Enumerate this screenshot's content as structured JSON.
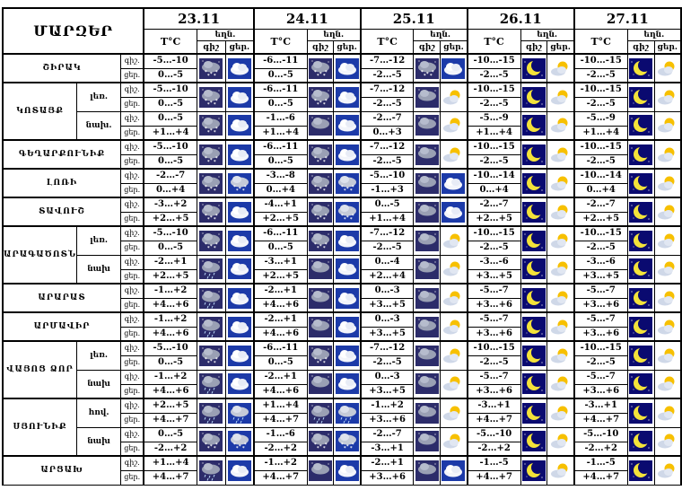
{
  "header": {
    "corner": "ՄԱՐԶԵՐ",
    "dates": [
      "23.11",
      "24.11",
      "25.11",
      "26.11",
      "27.11"
    ],
    "temp_label": "T°C",
    "cloud_label": "եղն.",
    "night_label": "գիշ",
    "day_label": "ցեր."
  },
  "row_labels": {
    "night": "գիշ.",
    "day": "ցեր."
  },
  "regions": [
    {
      "name": "ՇԻՐԱԿ",
      "subs": [
        {
          "sub": "",
          "night": [
            "-5…-10",
            "-6…-11",
            "-7…-12",
            "-10…-15",
            "-10…-15"
          ],
          "day": [
            "0…-5",
            "0…-5",
            "-2…-5",
            "-2…-5",
            "-2…-5"
          ],
          "icons": [
            [
              "cloud-snow-night",
              "cloud-day"
            ],
            [
              "cloud-snow-night",
              "cloud-day"
            ],
            [
              "cloud-snow-night",
              "cloud-day"
            ],
            [
              "moon-clear",
              "sun-cloud"
            ],
            [
              "moon-clear",
              "sun-cloud"
            ]
          ]
        }
      ]
    },
    {
      "name": "ԿՈՏԱՅՔ",
      "subs": [
        {
          "sub": "լեռ.",
          "night": [
            "-5…-10",
            "-6…-11",
            "-7…-12",
            "-10…-15",
            "-10…-15"
          ],
          "day": [
            "0…-5",
            "0…-5",
            "-2…-5",
            "-2…-5",
            "-2…-5"
          ],
          "icons": [
            [
              "cloud-snow-night",
              "cloud-day"
            ],
            [
              "cloud-snow-night",
              "cloud-day"
            ],
            [
              "cloud-night",
              "sun-cloud"
            ],
            [
              "moon-clear",
              "sun-cloud"
            ],
            [
              "moon-clear",
              "sun-cloud"
            ]
          ]
        },
        {
          "sub": "նախ.",
          "night": [
            "0…-5",
            "-1…-6",
            "-2…-7",
            "-5…-9",
            "-5…-9"
          ],
          "day": [
            "+1…+4",
            "+1…+4",
            "0…+3",
            "+1…+4",
            "+1…+4"
          ],
          "icons": [
            [
              "cloud-snow-night",
              "cloud-day"
            ],
            [
              "cloud-night",
              "cloud-day"
            ],
            [
              "cloud-night",
              "sun-cloud"
            ],
            [
              "moon-clear",
              "sun-cloud"
            ],
            [
              "moon-clear",
              "sun-cloud"
            ]
          ]
        }
      ]
    },
    {
      "name": "ԳԵՂԱՐՔՈՒՆԻՔ",
      "subs": [
        {
          "sub": "",
          "night": [
            "-5…-10",
            "-6…-11",
            "-7…-12",
            "-10…-15",
            "-10…-15"
          ],
          "day": [
            "0…-5",
            "0…-5",
            "-2…-5",
            "-2…-5",
            "-2…-5"
          ],
          "icons": [
            [
              "cloud-snow-night",
              "cloud-day"
            ],
            [
              "cloud-snow-night",
              "cloud-day"
            ],
            [
              "cloud-night",
              "sun-cloud"
            ],
            [
              "moon-clear",
              "sun-cloud"
            ],
            [
              "moon-clear",
              "sun-cloud"
            ]
          ]
        }
      ]
    },
    {
      "name": "ԼՈՌԻ",
      "subs": [
        {
          "sub": "",
          "night": [
            "-2…-7",
            "-3…-8",
            "-5…-10",
            "-10…-14",
            "-10…-14"
          ],
          "day": [
            "0…+4",
            "0…+4",
            "-1…+3",
            "0…+4",
            "0…+4"
          ],
          "icons": [
            [
              "cloud-snow-night",
              "cloud-snow-day"
            ],
            [
              "cloud-snow-night",
              "cloud-snow-day"
            ],
            [
              "cloud-night",
              "cloud-day"
            ],
            [
              "moon-clear",
              "sun-cloud"
            ],
            [
              "moon-clear",
              "sun-cloud"
            ]
          ]
        }
      ]
    },
    {
      "name": "ՏԱՎՈՒՇ",
      "subs": [
        {
          "sub": "",
          "night": [
            "-3…+2",
            "-4…+1",
            "0…-5",
            "-2…-7",
            "-2…-7"
          ],
          "day": [
            "+2…+5",
            "+2…+5",
            "+1…+4",
            "+2…+5",
            "+2…+5"
          ],
          "icons": [
            [
              "cloud-snow-night",
              "cloud-day"
            ],
            [
              "cloud-snow-night",
              "cloud-snow-day"
            ],
            [
              "cloud-night",
              "cloud-day"
            ],
            [
              "moon-clear",
              "sun-cloud"
            ],
            [
              "moon-clear",
              "sun-cloud"
            ]
          ]
        }
      ]
    },
    {
      "name": "ԱՐԱԳԱԾՈՏՆ",
      "subs": [
        {
          "sub": "լեռ.",
          "night": [
            "-5…-10",
            "-6…-11",
            "-7…-12",
            "-10…-15",
            "-10…-15"
          ],
          "day": [
            "0…-5",
            "0…-5",
            "-2…-5",
            "-2…-5",
            "-2…-5"
          ],
          "icons": [
            [
              "cloud-snow-night",
              "cloud-day"
            ],
            [
              "cloud-snow-night",
              "cloud-day"
            ],
            [
              "cloud-night",
              "sun-cloud"
            ],
            [
              "moon-clear",
              "sun-cloud"
            ],
            [
              "moon-clear",
              "sun-cloud"
            ]
          ]
        },
        {
          "sub": "նախ",
          "night": [
            "-2…+1",
            "-3…+1",
            "0…-4",
            "-3…-6",
            "-3…-6"
          ],
          "day": [
            "+2…+5",
            "+2…+5",
            "+2…+4",
            "+3…+5",
            "+3…+5"
          ],
          "icons": [
            [
              "cloud-rain-night",
              "cloud-day"
            ],
            [
              "cloud-night",
              "cloud-day"
            ],
            [
              "cloud-night",
              "sun-cloud"
            ],
            [
              "moon-clear",
              "sun-cloud"
            ],
            [
              "moon-clear",
              "sun-cloud"
            ]
          ]
        }
      ]
    },
    {
      "name": "ԱՐԱՐԱՏ",
      "subs": [
        {
          "sub": "",
          "night": [
            "-1…+2",
            "-2…+1",
            "0…-3",
            "-5…-7",
            "-5…-7"
          ],
          "day": [
            "+4…+6",
            "+4…+6",
            "+3…+5",
            "+3…+6",
            "+3…+6"
          ],
          "icons": [
            [
              "cloud-rain-night",
              "cloud-day"
            ],
            [
              "cloud-night",
              "cloud-day"
            ],
            [
              "cloud-night",
              "sun-cloud"
            ],
            [
              "moon-clear",
              "sun-cloud"
            ],
            [
              "moon-clear",
              "sun-cloud"
            ]
          ]
        }
      ]
    },
    {
      "name": "ԱՐՄԱՎԻՐ",
      "subs": [
        {
          "sub": "",
          "night": [
            "-1…+2",
            "-2…+1",
            "0…-3",
            "-5…-7",
            "-5…-7"
          ],
          "day": [
            "+4…+6",
            "+4…+6",
            "+3…+5",
            "+3…+6",
            "+3…+6"
          ],
          "icons": [
            [
              "cloud-rain-night",
              "cloud-day"
            ],
            [
              "cloud-night",
              "cloud-day"
            ],
            [
              "cloud-night",
              "sun-cloud"
            ],
            [
              "moon-clear",
              "sun-cloud"
            ],
            [
              "moon-clear",
              "sun-cloud"
            ]
          ]
        }
      ]
    },
    {
      "name": "ՎԱՅՈՑ ՁՈՐ",
      "subs": [
        {
          "sub": "լեռ.",
          "night": [
            "-5…-10",
            "-6…-11",
            "-7…-12",
            "-10…-15",
            "-10…-15"
          ],
          "day": [
            "0…-5",
            "0…-5",
            "-2…-5",
            "-2…-5",
            "-2…-5"
          ],
          "icons": [
            [
              "cloud-snow-night",
              "cloud-day"
            ],
            [
              "cloud-snow-night",
              "cloud-day"
            ],
            [
              "cloud-night",
              "sun-cloud"
            ],
            [
              "moon-clear",
              "sun-cloud"
            ],
            [
              "moon-clear",
              "sun-cloud"
            ]
          ]
        },
        {
          "sub": "նախ",
          "night": [
            "-1…+2",
            "-2…+1",
            "0…-3",
            "-5…-7",
            "-5…-7"
          ],
          "day": [
            "+4…+6",
            "+4…+6",
            "+3…+5",
            "+3…+6",
            "+3…+6"
          ],
          "icons": [
            [
              "cloud-rain-night",
              "cloud-day"
            ],
            [
              "cloud-night",
              "cloud-day"
            ],
            [
              "cloud-night",
              "sun-cloud"
            ],
            [
              "moon-clear",
              "sun-cloud"
            ],
            [
              "moon-clear",
              "sun-cloud"
            ]
          ]
        }
      ]
    },
    {
      "name": "ՍՅՈՒՆԻՔ",
      "subs": [
        {
          "sub": "հով.",
          "night": [
            "+2…+5",
            "+1…+4",
            "-1…+2",
            "-3…+1",
            "-3…+1"
          ],
          "day": [
            "+4…+7",
            "+4…+7",
            "+3…+6",
            "+4…+7",
            "+4…+7"
          ],
          "icons": [
            [
              "cloud-rain-night",
              "cloud-rain-day"
            ],
            [
              "cloud-rain-night",
              "cloud-rain-day"
            ],
            [
              "cloud-night",
              "sun-cloud"
            ],
            [
              "moon-clear",
              "sun-cloud"
            ],
            [
              "moon-clear",
              "sun-cloud"
            ]
          ]
        },
        {
          "sub": "նախ",
          "night": [
            "0…-5",
            "-1…-6",
            "-2…-7",
            "-5…-10",
            "-5…-10"
          ],
          "day": [
            "-2…+2",
            "-2…+2",
            "-3…+1",
            "-2…+2",
            "-2…+2"
          ],
          "icons": [
            [
              "cloud-snow-night",
              "cloud-snow-day"
            ],
            [
              "cloud-snow-night",
              "cloud-snow-day"
            ],
            [
              "cloud-night",
              "sun-cloud"
            ],
            [
              "moon-clear",
              "sun-cloud"
            ],
            [
              "moon-clear",
              "sun-cloud"
            ]
          ]
        }
      ]
    },
    {
      "name": "ԱՐՑԱԽ",
      "subs": [
        {
          "sub": "",
          "night": [
            "+1…+4",
            "-1…+2",
            "-2…+1",
            "-1…-5",
            "-1…-5"
          ],
          "day": [
            "+4…+7",
            "+4…+7",
            "+3…+6",
            "+4…+7",
            "+4…+7"
          ],
          "icons": [
            [
              "cloud-rain-night",
              "cloud-day"
            ],
            [
              "cloud-night",
              "cloud-day"
            ],
            [
              "cloud-night",
              "cloud-day"
            ],
            [
              "moon-clear",
              "sun-cloud"
            ],
            [
              "moon-clear",
              "sun-cloud"
            ]
          ]
        }
      ]
    }
  ]
}
